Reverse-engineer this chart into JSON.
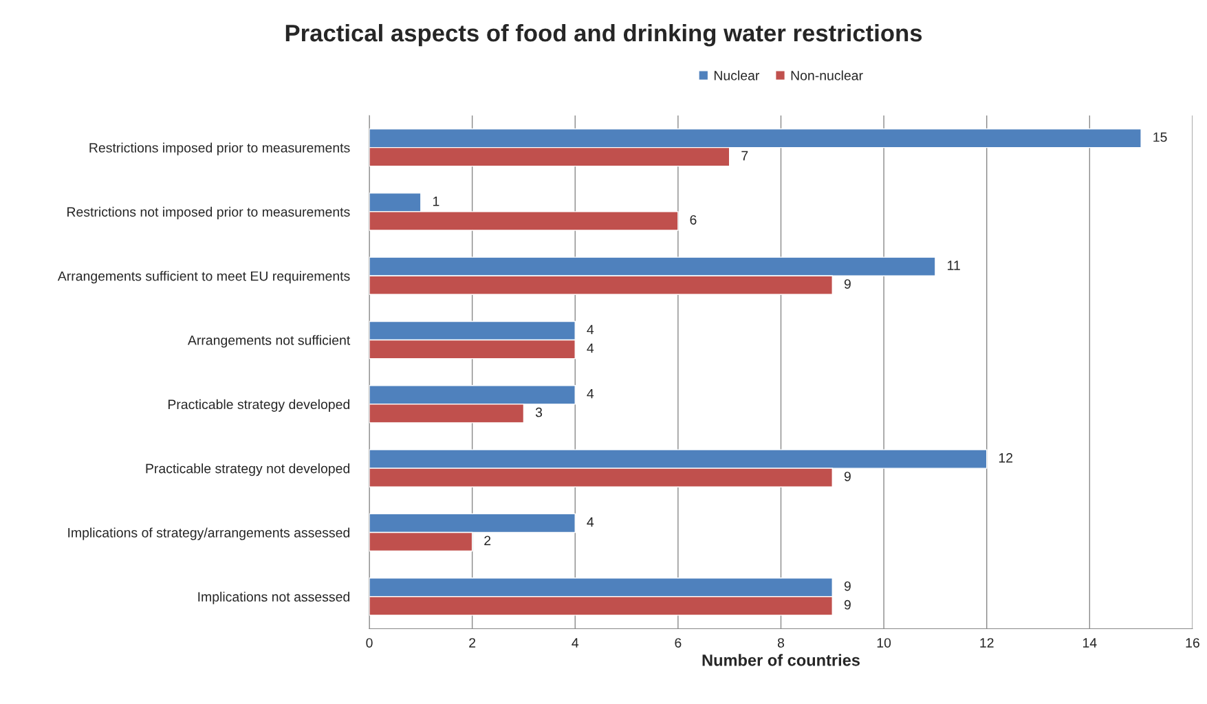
{
  "chart_data": {
    "type": "bar",
    "orientation": "horizontal",
    "title": "Practical aspects of food and drinking water restrictions",
    "xlabel": "Number of countries",
    "categories": [
      "Restrictions imposed prior to measurements",
      "Restrictions not imposed prior to measurements",
      "Arrangements sufficient to meet EU requirements",
      "Arrangements not sufficient",
      "Practicable strategy developed",
      "Practicable strategy not developed",
      "Implications of strategy/arrangements assessed",
      "Implications not assessed"
    ],
    "series": [
      {
        "name": "Nuclear",
        "color": "#4f81bd",
        "values": [
          15,
          1,
          11,
          4,
          4,
          12,
          4,
          9
        ]
      },
      {
        "name": "Non-nuclear",
        "color": "#c0504d",
        "values": [
          7,
          6,
          9,
          4,
          3,
          9,
          2,
          9
        ]
      }
    ],
    "xlim": [
      0,
      16
    ],
    "xticks": [
      0,
      2,
      4,
      6,
      8,
      10,
      12,
      14,
      16
    ],
    "grid": "x",
    "legend": "top",
    "data_labels": true
  }
}
